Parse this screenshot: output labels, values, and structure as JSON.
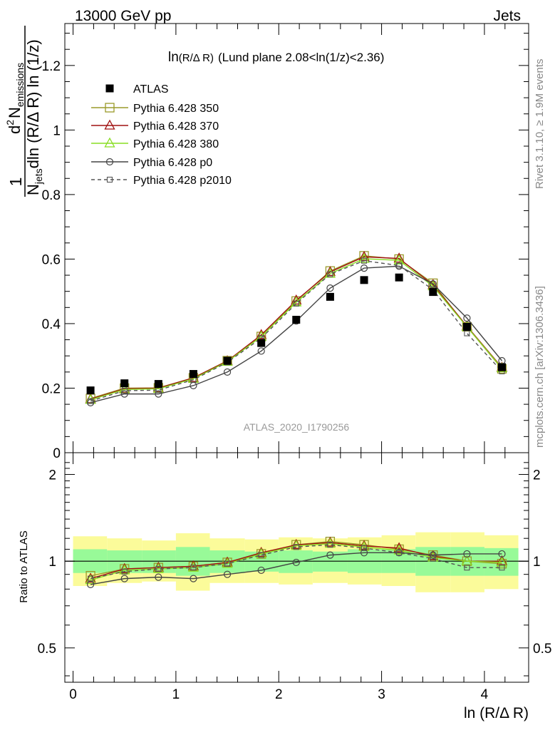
{
  "header": {
    "left": "13000 GeV pp",
    "right": "Jets"
  },
  "side_labels": {
    "rivet": "Rivet 3.1.10, ≥ 1.9M events",
    "mcplots": "mcplots.cern.ch [arXiv:1306.3436]"
  },
  "analysis_id": "ATLAS_2020_I1790256",
  "colors": {
    "atlas": "#000000",
    "p350": "#9a9a2a",
    "p370": "#a01010",
    "p380": "#88dd22",
    "p0": "#444444",
    "p2010": "#555555",
    "band_inner": "#98fa98",
    "band_outer": "#fbfb9a"
  },
  "chart_data": [
    {
      "type": "scatter",
      "panel": "main",
      "title_prefix": "ln",
      "title_paren": "(R/Δ R)",
      "title_rest": "(Lund plane 2.08<ln(1/z)<2.36)",
      "ylabel_top": "1",
      "ylabel_num_d": "d",
      "ylabel_num_sup": "2",
      "ylabel_num_N": "N",
      "ylabel_num_sub": "emissions",
      "ylabel_den_N": "N",
      "ylabel_den_sub": "jets",
      "ylabel_den_rest": "dln (R/Δ R) ln (1/z)",
      "xlim": [
        -0.08,
        4.43
      ],
      "ylim": [
        0,
        1.33
      ],
      "yticks": [
        {
          "v": 0,
          "label": "0"
        },
        {
          "v": 0.2,
          "label": "0.2"
        },
        {
          "v": 0.4,
          "label": "0.4"
        },
        {
          "v": 0.6,
          "label": "0.6"
        },
        {
          "v": 0.8,
          "label": "0.8"
        },
        {
          "v": 1.0,
          "label": "1"
        },
        {
          "v": 1.2,
          "label": "1.2"
        }
      ],
      "x": [
        0.17,
        0.5,
        0.83,
        1.17,
        1.5,
        1.83,
        2.17,
        2.5,
        2.83,
        3.17,
        3.5,
        3.83,
        4.17
      ],
      "series": [
        {
          "key": "p350",
          "name": "Pythia 6.428 350",
          "marker": "square-open",
          "dash": false,
          "values": [
            0.168,
            0.2,
            0.201,
            0.232,
            0.285,
            0.36,
            0.47,
            0.563,
            0.61,
            0.6,
            0.525,
            0.39,
            0.26
          ]
        },
        {
          "key": "p370",
          "name": "Pythia 6.428 370",
          "marker": "triangle-open",
          "dash": false,
          "values": [
            0.166,
            0.198,
            0.2,
            0.232,
            0.284,
            0.365,
            0.472,
            0.56,
            0.607,
            0.602,
            0.52,
            0.392,
            0.264
          ]
        },
        {
          "key": "p380",
          "name": "Pythia 6.428 380",
          "marker": "triangle-open",
          "dash": false,
          "values": [
            0.164,
            0.196,
            0.198,
            0.229,
            0.282,
            0.36,
            0.466,
            0.555,
            0.601,
            0.596,
            0.516,
            0.39,
            0.262
          ]
        },
        {
          "key": "p0",
          "name": "Pythia 6.428 p0",
          "marker": "circle-open",
          "dash": false,
          "values": [
            0.155,
            0.182,
            0.182,
            0.208,
            0.25,
            0.315,
            0.408,
            0.51,
            0.572,
            0.578,
            0.523,
            0.417,
            0.285
          ]
        },
        {
          "key": "p2010",
          "name": "Pythia 6.428 p2010",
          "marker": "square-open-small",
          "dash": true,
          "values": [
            0.16,
            0.192,
            0.194,
            0.226,
            0.28,
            0.355,
            0.462,
            0.553,
            0.595,
            0.58,
            0.505,
            0.37,
            0.252
          ]
        }
      ],
      "data": {
        "key": "atlas",
        "name": "ATLAS",
        "marker": "square-filled",
        "values": [
          0.193,
          0.215,
          0.213,
          0.244,
          0.285,
          0.34,
          0.412,
          0.483,
          0.535,
          0.543,
          0.498,
          0.39,
          0.265
        ]
      }
    },
    {
      "type": "line",
      "panel": "ratio",
      "ylabel": "Ratio to ATLAS",
      "xlabel": "ln (R/Δ R)",
      "xlim": [
        -0.08,
        4.43
      ],
      "ylim": [
        0.38,
        2.38
      ],
      "log_y": true,
      "yticks": [
        {
          "v": 0.5,
          "label": "0.5"
        },
        {
          "v": 1,
          "label": "1"
        },
        {
          "v": 2,
          "label": "2"
        }
      ],
      "xticks": [
        {
          "v": 0,
          "label": "0"
        },
        {
          "v": 1,
          "label": "1"
        },
        {
          "v": 2,
          "label": "2"
        },
        {
          "v": 3,
          "label": "3"
        },
        {
          "v": 4,
          "label": "4"
        }
      ],
      "bin_edges": [
        0.0,
        0.33,
        0.67,
        1.0,
        1.33,
        1.67,
        2.0,
        2.33,
        2.67,
        3.0,
        3.33,
        3.67,
        4.0,
        4.33
      ],
      "band_inner": [
        [
          0.91,
          1.1
        ],
        [
          0.91,
          1.09
        ],
        [
          0.91,
          1.09
        ],
        [
          0.89,
          1.12
        ],
        [
          0.91,
          1.09
        ],
        [
          0.92,
          1.08
        ],
        [
          0.91,
          1.09
        ],
        [
          0.92,
          1.08
        ],
        [
          0.91,
          1.1
        ],
        [
          0.91,
          1.1
        ],
        [
          0.89,
          1.12
        ],
        [
          0.89,
          1.12
        ],
        [
          0.89,
          1.11
        ]
      ],
      "band_outer": [
        [
          0.82,
          1.22
        ],
        [
          0.84,
          1.2
        ],
        [
          0.85,
          1.18
        ],
        [
          0.79,
          1.25
        ],
        [
          0.84,
          1.2
        ],
        [
          0.84,
          1.19
        ],
        [
          0.83,
          1.21
        ],
        [
          0.84,
          1.2
        ],
        [
          0.83,
          1.21
        ],
        [
          0.82,
          1.23
        ],
        [
          0.78,
          1.26
        ],
        [
          0.78,
          1.26
        ],
        [
          0.8,
          1.23
        ]
      ],
      "x": [
        0.17,
        0.5,
        0.83,
        1.17,
        1.5,
        1.83,
        2.17,
        2.5,
        2.83,
        3.17,
        3.5,
        3.83,
        4.17
      ],
      "series": [
        {
          "key": "p350",
          "values": [
            0.89,
            0.94,
            0.95,
            0.96,
            0.99,
            1.06,
            1.14,
            1.17,
            1.14,
            1.1,
            1.05,
            1.0,
            0.98
          ]
        },
        {
          "key": "p370",
          "values": [
            0.87,
            0.94,
            0.95,
            0.96,
            0.99,
            1.07,
            1.14,
            1.16,
            1.13,
            1.11,
            1.04,
            1.0,
            1.0
          ]
        },
        {
          "key": "p380",
          "values": [
            0.86,
            0.93,
            0.94,
            0.95,
            0.98,
            1.06,
            1.13,
            1.15,
            1.12,
            1.09,
            1.03,
            1.0,
            0.99
          ]
        },
        {
          "key": "p0",
          "values": [
            0.83,
            0.87,
            0.88,
            0.87,
            0.9,
            0.93,
            0.99,
            1.05,
            1.07,
            1.07,
            1.05,
            1.06,
            1.06
          ]
        },
        {
          "key": "p2010",
          "values": [
            0.87,
            0.92,
            0.94,
            0.95,
            0.98,
            1.05,
            1.12,
            1.14,
            1.11,
            1.07,
            1.02,
            0.95,
            0.95
          ]
        }
      ]
    }
  ]
}
